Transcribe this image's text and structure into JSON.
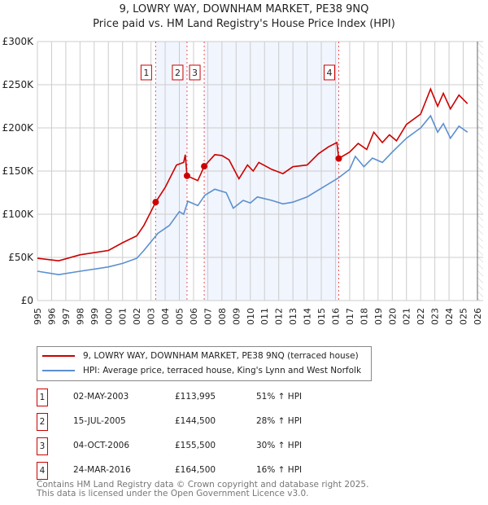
{
  "chart_data": {
    "type": "line",
    "title": "9, LOWRY WAY, DOWNHAM MARKET, PE38 9NQ",
    "subtitle": "Price paid vs. HM Land Registry's House Price Index (HPI)",
    "xlim": [
      1995,
      2026
    ],
    "ylim": [
      0,
      300000
    ],
    "y_ticks": [
      {
        "v": 0,
        "label": "£0"
      },
      {
        "v": 50000,
        "label": "£50K"
      },
      {
        "v": 100000,
        "label": "£100K"
      },
      {
        "v": 150000,
        "label": "£150K"
      },
      {
        "v": 200000,
        "label": "£200K"
      },
      {
        "v": 250000,
        "label": "£250K"
      },
      {
        "v": 300000,
        "label": "£300K"
      }
    ],
    "x_ticks": [
      "1995",
      "1996",
      "1997",
      "1998",
      "1999",
      "2000",
      "2001",
      "2002",
      "2003",
      "2004",
      "2005",
      "2006",
      "2007",
      "2008",
      "2009",
      "2010",
      "2011",
      "2012",
      "2013",
      "2014",
      "2015",
      "2016",
      "2017",
      "2018",
      "2019",
      "2020",
      "2021",
      "2022",
      "2023",
      "2024",
      "2025",
      "2026"
    ],
    "grid": true,
    "legend_position": "below",
    "series": [
      {
        "name": "9, LOWRY WAY, DOWNHAM MARKET, PE38 9NQ (terraced house)",
        "color": "#cc0000",
        "x": [
          1995,
          1996.5,
          1998,
          2000,
          2001,
          2002,
          2002.5,
          2003,
          2003.33,
          2004,
          2004.8,
          2005.3,
          2005.42,
          2005.54,
          2006.3,
          2006.75,
          2007.5,
          2008,
          2008.5,
          2009.2,
          2009.8,
          2010.2,
          2010.6,
          2011.5,
          2012.3,
          2013,
          2014,
          2014.8,
          2015.5,
          2016.1,
          2016.23,
          2017,
          2017.6,
          2018.2,
          2018.7,
          2019.3,
          2019.8,
          2020.3,
          2021,
          2022,
          2022.7,
          2023.2,
          2023.6,
          2024.1,
          2024.7,
          2025.3
        ],
        "y": [
          49000,
          46000,
          53000,
          58000,
          67000,
          75000,
          87000,
          103000,
          113995,
          131000,
          157000,
          160000,
          169000,
          144500,
          139000,
          155500,
          169000,
          168000,
          163000,
          141000,
          157000,
          150000,
          160000,
          152000,
          147000,
          155000,
          157000,
          170000,
          178000,
          183000,
          164500,
          172000,
          182000,
          175000,
          195000,
          183000,
          192000,
          185000,
          204000,
          216000,
          245000,
          225000,
          240000,
          222000,
          238000,
          228000
        ]
      },
      {
        "name": "HPI: Average price, terraced house, King's Lynn and West Norfolk",
        "color": "#5b8fd0",
        "x": [
          1995,
          1996.5,
          1998,
          2000,
          2001,
          2002,
          2002.5,
          2003,
          2003.5,
          2004.3,
          2005,
          2005.3,
          2005.6,
          2006.3,
          2006.8,
          2007.5,
          2008.3,
          2008.8,
          2009.5,
          2010,
          2010.5,
          2011.5,
          2012.3,
          2013,
          2014,
          2015,
          2016.2,
          2017,
          2017.4,
          2018,
          2018.6,
          2019.3,
          2020,
          2021,
          2022,
          2022.7,
          2023.2,
          2023.6,
          2024.1,
          2024.7,
          2025.3
        ],
        "y": [
          34000,
          30000,
          34000,
          39000,
          43000,
          49000,
          58000,
          68000,
          78000,
          87000,
          103000,
          100000,
          115000,
          110000,
          122000,
          129000,
          125000,
          107000,
          116000,
          113000,
          120000,
          116000,
          112000,
          114000,
          120000,
          130000,
          142000,
          152000,
          167000,
          155000,
          165000,
          160000,
          172000,
          188000,
          200000,
          214000,
          195000,
          205000,
          188000,
          202000,
          195000
        ]
      }
    ],
    "sales": [
      {
        "id": "1",
        "x": 2003.33,
        "date": "02-MAY-2003",
        "price": "£113,995",
        "value": 113995,
        "hpi": "51% ↑ HPI"
      },
      {
        "id": "2",
        "x": 2005.54,
        "date": "15-JUL-2005",
        "price": "£144,500",
        "value": 144500,
        "hpi": "28% ↑ HPI"
      },
      {
        "id": "3",
        "x": 2006.75,
        "date": "04-OCT-2006",
        "price": "£155,500",
        "value": 155500,
        "hpi": "30% ↑ HPI"
      },
      {
        "id": "4",
        "x": 2016.23,
        "date": "24-MAR-2016",
        "price": "£164,500",
        "value": 164500,
        "hpi": "16% ↑ HPI"
      }
    ],
    "shaded_ranges": [
      [
        2003.33,
        2005.54
      ],
      [
        2006.75,
        2016.23
      ]
    ],
    "forecast_start": 2026
  },
  "legend": {
    "red": "9, LOWRY WAY, DOWNHAM MARKET, PE38 9NQ (terraced house)",
    "blue": "HPI: Average price, terraced house, King's Lynn and West Norfolk"
  },
  "footer": {
    "line1": "Contains HM Land Registry data © Crown copyright and database right 2025.",
    "line2": "This data is licensed under the Open Government Licence v3.0."
  }
}
